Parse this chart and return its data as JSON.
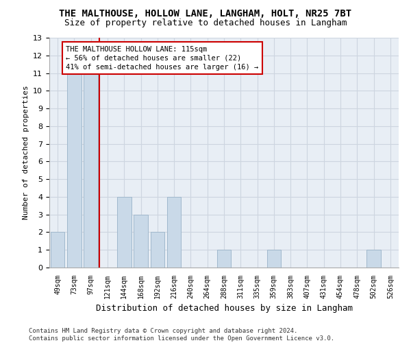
{
  "title": "THE MALTHOUSE, HOLLOW LANE, LANGHAM, HOLT, NR25 7BT",
  "subtitle": "Size of property relative to detached houses in Langham",
  "xlabel": "Distribution of detached houses by size in Langham",
  "ylabel": "Number of detached properties",
  "categories": [
    "49sqm",
    "73sqm",
    "97sqm",
    "121sqm",
    "144sqm",
    "168sqm",
    "192sqm",
    "216sqm",
    "240sqm",
    "264sqm",
    "288sqm",
    "311sqm",
    "335sqm",
    "359sqm",
    "383sqm",
    "407sqm",
    "431sqm",
    "454sqm",
    "478sqm",
    "502sqm",
    "526sqm"
  ],
  "values": [
    2,
    11,
    11,
    0,
    4,
    3,
    2,
    4,
    0,
    0,
    1,
    0,
    0,
    1,
    0,
    0,
    0,
    0,
    0,
    1,
    0
  ],
  "bar_color": "#c9d9e8",
  "bar_edgecolor": "#a0b8cc",
  "reference_line_index": 2,
  "reference_line_color": "#cc0000",
  "annotation_text": "THE MALTHOUSE HOLLOW LANE: 115sqm\n← 56% of detached houses are smaller (22)\n41% of semi-detached houses are larger (16) →",
  "annotation_box_color": "#ffffff",
  "annotation_box_edgecolor": "#cc0000",
  "ylim": [
    0,
    13
  ],
  "yticks": [
    0,
    1,
    2,
    3,
    4,
    5,
    6,
    7,
    8,
    9,
    10,
    11,
    12,
    13
  ],
  "grid_color": "#cdd5e0",
  "background_color": "#e8eef5",
  "footer": "Contains HM Land Registry data © Crown copyright and database right 2024.\nContains public sector information licensed under the Open Government Licence v3.0.",
  "title_fontsize": 10,
  "subtitle_fontsize": 9,
  "annot_fontsize": 7.5,
  "footer_fontsize": 6.5,
  "ylabel_fontsize": 8,
  "xlabel_fontsize": 9
}
